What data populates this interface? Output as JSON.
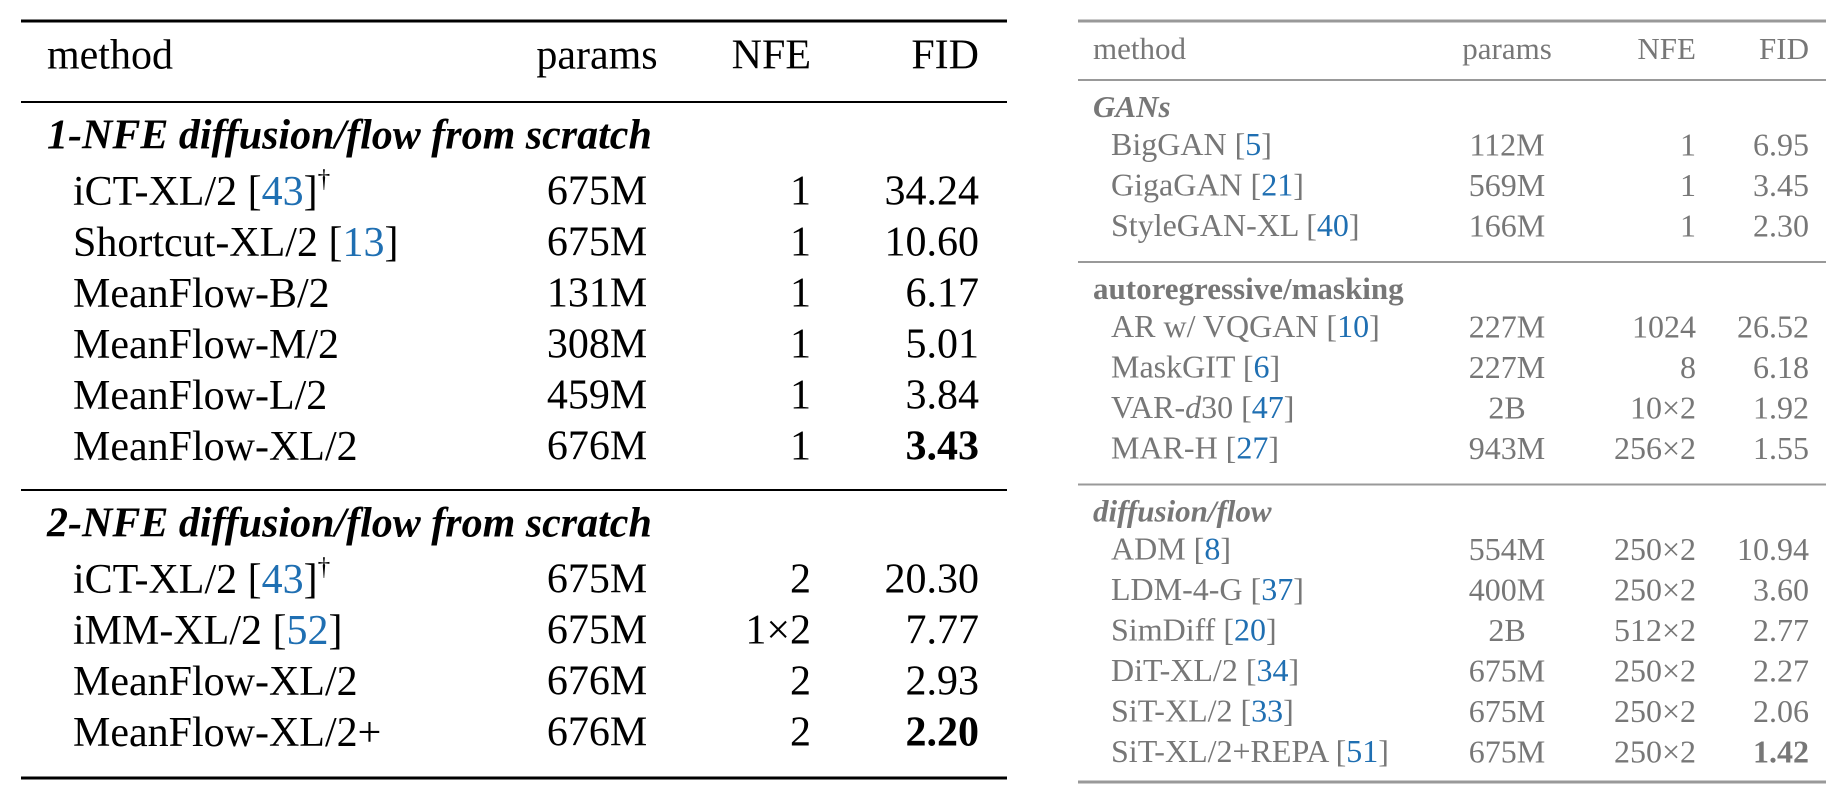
{
  "tables": [
    {
      "header": [
        "method",
        "params",
        "NFE",
        "FID"
      ],
      "sections": [
        {
          "title": "1-NFE diffusion/flow from scratch",
          "title_style": "bold-italic",
          "rows": [
            {
              "method": [
                {
                  "text": "iCT-XL/2 ["
                },
                {
                  "text": "43",
                  "style": "ref"
                },
                {
                  "text": "]"
                },
                {
                  "text": "†",
                  "style": "sup"
                }
              ],
              "params": "675M",
              "nfe": "1",
              "fid": "34.24"
            },
            {
              "method": [
                {
                  "text": "Shortcut-XL/2 ["
                },
                {
                  "text": "13",
                  "style": "ref"
                },
                {
                  "text": "]"
                }
              ],
              "params": "675M",
              "nfe": "1",
              "fid": "10.60"
            },
            {
              "method": [
                {
                  "text": "MeanFlow-B/2"
                }
              ],
              "params": "131M",
              "nfe": "1",
              "fid": "6.17"
            },
            {
              "method": [
                {
                  "text": "MeanFlow-M/2"
                }
              ],
              "params": "308M",
              "nfe": "1",
              "fid": "5.01"
            },
            {
              "method": [
                {
                  "text": "MeanFlow-L/2"
                }
              ],
              "params": "459M",
              "nfe": "1",
              "fid": "3.84"
            },
            {
              "method": [
                {
                  "text": "MeanFlow-XL/2"
                }
              ],
              "params": "676M",
              "nfe": "1",
              "fid": "3.43",
              "fid_bold": true
            }
          ]
        },
        {
          "title": "2-NFE diffusion/flow from scratch",
          "title_style": "bold-italic",
          "rows": [
            {
              "method": [
                {
                  "text": "iCT-XL/2 ["
                },
                {
                  "text": "43",
                  "style": "ref"
                },
                {
                  "text": "]"
                },
                {
                  "text": "†",
                  "style": "sup"
                }
              ],
              "params": "675M",
              "nfe": "2",
              "fid": "20.30"
            },
            {
              "method": [
                {
                  "text": "iMM-XL/2 ["
                },
                {
                  "text": "52",
                  "style": "ref"
                },
                {
                  "text": "]"
                }
              ],
              "params": "675M",
              "nfe": "1×2",
              "fid": "7.77"
            },
            {
              "method": [
                {
                  "text": "MeanFlow-XL/2"
                }
              ],
              "params": "676M",
              "nfe": "2",
              "fid": "2.93"
            },
            {
              "method": [
                {
                  "text": "MeanFlow-XL/2+"
                }
              ],
              "params": "676M",
              "nfe": "2",
              "fid": "2.20",
              "fid_bold": true
            }
          ]
        }
      ]
    },
    {
      "header": [
        "method",
        "params",
        "NFE",
        "FID"
      ],
      "sections": [
        {
          "title": "GANs",
          "title_style": "bold-italic",
          "rows": [
            {
              "method": [
                {
                  "text": "BigGAN ["
                },
                {
                  "text": "5",
                  "style": "ref"
                },
                {
                  "text": "]"
                }
              ],
              "params": "112M",
              "nfe": "1",
              "fid": "6.95"
            },
            {
              "method": [
                {
                  "text": "GigaGAN ["
                },
                {
                  "text": "21",
                  "style": "ref"
                },
                {
                  "text": "]"
                }
              ],
              "params": "569M",
              "nfe": "1",
              "fid": "3.45"
            },
            {
              "method": [
                {
                  "text": "StyleGAN-XL ["
                },
                {
                  "text": "40",
                  "style": "ref"
                },
                {
                  "text": "]"
                }
              ],
              "params": "166M",
              "nfe": "1",
              "fid": "2.30"
            }
          ]
        },
        {
          "title": "autoregressive/masking",
          "title_style": "bold",
          "rows": [
            {
              "method": [
                {
                  "text": "AR w/ VQGAN ["
                },
                {
                  "text": "10",
                  "style": "ref"
                },
                {
                  "text": "]"
                }
              ],
              "params": "227M",
              "nfe": "1024",
              "fid": "26.52"
            },
            {
              "method": [
                {
                  "text": "MaskGIT ["
                },
                {
                  "text": "6",
                  "style": "ref"
                },
                {
                  "text": "]"
                }
              ],
              "params": "227M",
              "nfe": "8",
              "fid": "6.18"
            },
            {
              "method": [
                {
                  "text": "VAR-"
                },
                {
                  "text": "d",
                  "style": "italic"
                },
                {
                  "text": "30 ["
                },
                {
                  "text": "47",
                  "style": "ref"
                },
                {
                  "text": "]"
                }
              ],
              "params": "2B",
              "nfe": "10×2",
              "fid": "1.92"
            },
            {
              "method": [
                {
                  "text": "MAR-H ["
                },
                {
                  "text": "27",
                  "style": "ref"
                },
                {
                  "text": "]"
                }
              ],
              "params": "943M",
              "nfe": "256×2",
              "fid": "1.55"
            }
          ]
        },
        {
          "title": "diffusion/flow",
          "title_style": "bold-italic",
          "rows": [
            {
              "method": [
                {
                  "text": "ADM ["
                },
                {
                  "text": "8",
                  "style": "ref"
                },
                {
                  "text": "]"
                }
              ],
              "params": "554M",
              "nfe": "250×2",
              "fid": "10.94"
            },
            {
              "method": [
                {
                  "text": "LDM-4-G ["
                },
                {
                  "text": "37",
                  "style": "ref"
                },
                {
                  "text": "]"
                }
              ],
              "params": "400M",
              "nfe": "250×2",
              "fid": "3.60"
            },
            {
              "method": [
                {
                  "text": "SimDiff ["
                },
                {
                  "text": "20",
                  "style": "ref"
                },
                {
                  "text": "]"
                }
              ],
              "params": "2B",
              "nfe": "512×2",
              "fid": "2.77"
            },
            {
              "method": [
                {
                  "text": "DiT-XL/2 ["
                },
                {
                  "text": "34",
                  "style": "ref"
                },
                {
                  "text": "]"
                }
              ],
              "params": "675M",
              "nfe": "250×2",
              "fid": "2.27"
            },
            {
              "method": [
                {
                  "text": "SiT-XL/2 ["
                },
                {
                  "text": "33",
                  "style": "ref"
                },
                {
                  "text": "]"
                }
              ],
              "params": "675M",
              "nfe": "250×2",
              "fid": "2.06"
            },
            {
              "method": [
                {
                  "text": "SiT-XL/2+REPA ["
                },
                {
                  "text": "51",
                  "style": "ref"
                },
                {
                  "text": "]"
                }
              ],
              "params": "675M",
              "nfe": "250×2",
              "fid": "1.42",
              "fid_bold": true
            }
          ]
        }
      ]
    }
  ]
}
